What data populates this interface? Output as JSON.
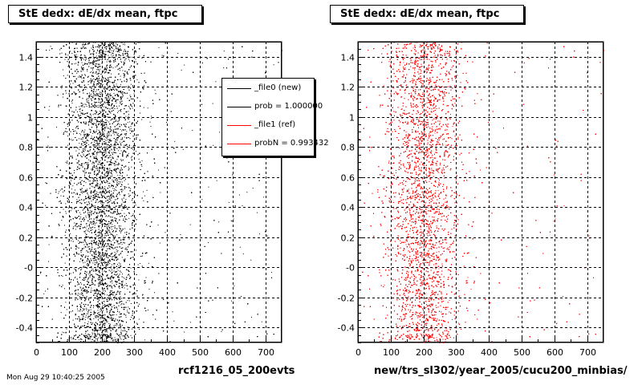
{
  "chart_data": [
    {
      "type": "scatter",
      "title": "StE dedx: dE/dx mean, ftpc",
      "xlabel": "rcf1216_05_200evts",
      "ylabel": "",
      "xlim": [
        0,
        750
      ],
      "ylim": [
        -0.5,
        1.5
      ],
      "xticks": [
        "0",
        "100",
        "200",
        "300",
        "400",
        "500",
        "600",
        "700"
      ],
      "yticks": [
        "-0.4",
        "-0.2",
        "-0",
        "0.2",
        "0.4",
        "0.6",
        "0.8",
        "1",
        "1.2",
        "1.4"
      ],
      "series": [
        {
          "name": "_file0 (new)",
          "color": "#000000",
          "distribution": {
            "center_x": 200,
            "spread_x": 55,
            "x_range": [
              0,
              750
            ],
            "y_range": [
              -0.5,
              1.5
            ],
            "density": "high"
          }
        }
      ],
      "legend": {
        "placement": "top-right",
        "entries": [
          {
            "label": "_file0 (new)",
            "color": "#000000"
          },
          {
            "label": "prob = 1.000000",
            "color": "#000000"
          },
          {
            "label": "_file1 (ref)",
            "color": "#ff0000"
          },
          {
            "label": "probN = 0.993432",
            "color": "#ff0000"
          }
        ]
      },
      "grid": true
    },
    {
      "type": "scatter",
      "title": "StE dedx: dE/dx mean, ftpc",
      "xlabel": "new/trs_sl302/year_2005/cucu200_minbias/",
      "ylabel": "",
      "xlim": [
        0,
        750
      ],
      "ylim": [
        -0.5,
        1.5
      ],
      "xticks": [
        "0",
        "100",
        "200",
        "300",
        "400",
        "500",
        "600",
        "700"
      ],
      "yticks": [
        "-0.4",
        "-0.2",
        "-0",
        "0.2",
        "0.4",
        "0.6",
        "0.8",
        "1",
        "1.2",
        "1.4"
      ],
      "series": [
        {
          "name": "_file1 (ref)",
          "color": "#ff0000",
          "distribution": {
            "center_x": 200,
            "spread_x": 55,
            "x_range": [
              0,
              750
            ],
            "y_range": [
              -0.5,
              1.5
            ],
            "density": "high"
          }
        }
      ],
      "grid": true
    }
  ],
  "footer": {
    "timestamp": "Mon Aug 29 10:40:25 2005"
  }
}
